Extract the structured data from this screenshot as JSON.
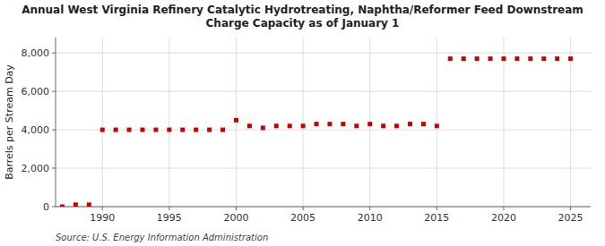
{
  "chart_data": {
    "type": "scatter",
    "title": "Annual West Virginia Refinery Catalytic Hydrotreating, Naphtha/Reformer Feed Downstream\nCharge Capacity as of January 1",
    "ylabel": "Barrels per Stream Day",
    "source": "Source: U.S. Energy Information Administration",
    "x": [
      1987,
      1988,
      1989,
      1990,
      1991,
      1992,
      1993,
      1994,
      1995,
      1996,
      1997,
      1998,
      1999,
      2000,
      2001,
      2002,
      2003,
      2004,
      2005,
      2006,
      2007,
      2008,
      2009,
      2010,
      2011,
      2012,
      2013,
      2014,
      2015,
      2016,
      2017,
      2018,
      2019,
      2020,
      2021,
      2022,
      2023,
      2024,
      2025
    ],
    "values": [
      0,
      100,
      100,
      4000,
      4000,
      4000,
      4000,
      4000,
      4000,
      4000,
      4000,
      4000,
      4000,
      4500,
      4200,
      4100,
      4200,
      4200,
      4200,
      4300,
      4300,
      4300,
      4200,
      4300,
      4200,
      4200,
      4300,
      4300,
      4200,
      7700,
      7700,
      7700,
      7700,
      7700,
      7700,
      7700,
      7700,
      7700,
      7700
    ],
    "color": "#cc0000",
    "marker": "square",
    "grid": true,
    "xlim": [
      1986.5,
      2026.5
    ],
    "ylim": [
      0,
      8800
    ],
    "xticks": [
      1990,
      1995,
      2000,
      2005,
      2010,
      2015,
      2020,
      2025
    ],
    "yticks": [
      0,
      {
        "value": 2000,
        "label": "2,000"
      },
      {
        "value": 4000,
        "label": "4,000"
      },
      {
        "value": 6000,
        "label": "6,000"
      },
      {
        "value": 8000,
        "label": "8,000"
      }
    ]
  }
}
